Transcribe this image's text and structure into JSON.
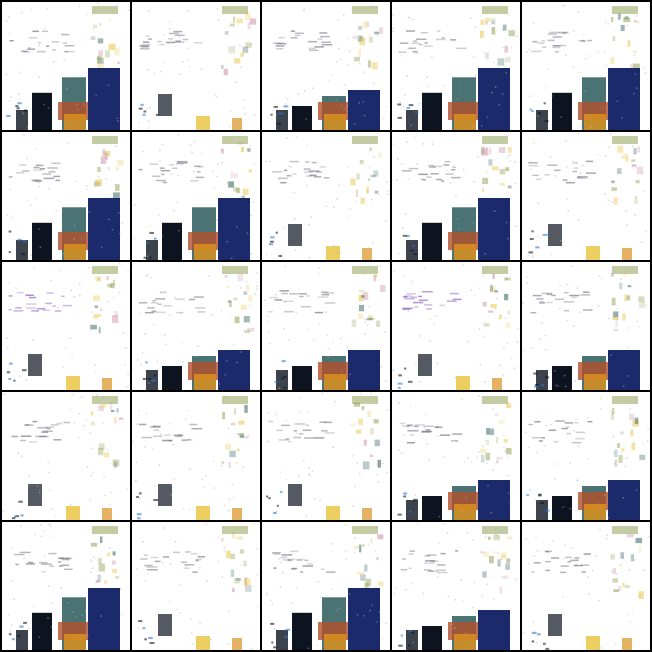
{
  "grid": {
    "rows": 5,
    "cols": 5
  },
  "palette": {
    "background": "#ffffff",
    "separator": "#000000",
    "navy": "#1b2a6b",
    "dark": "#0d1420",
    "teal": "#2c5a5a",
    "orange": "#d9911f",
    "rust": "#b3502a",
    "yellow": "#e8c23a",
    "olive": "#8a9a4a",
    "violet": "#7a4ab8",
    "blue": "#2a7ad9"
  },
  "tiles": [
    {
      "variant": "dense"
    },
    {
      "variant": "sparse"
    },
    {
      "variant": "medium"
    },
    {
      "variant": "dense"
    },
    {
      "variant": "dense"
    },
    {
      "variant": "dense"
    },
    {
      "variant": "dense"
    },
    {
      "variant": "sparse"
    },
    {
      "variant": "dense"
    },
    {
      "variant": "sparse"
    },
    {
      "variant": "faint"
    },
    {
      "variant": "medium"
    },
    {
      "variant": "medium"
    },
    {
      "variant": "faint"
    },
    {
      "variant": "medium"
    },
    {
      "variant": "sparse"
    },
    {
      "variant": "sparse"
    },
    {
      "variant": "sparse"
    },
    {
      "variant": "medium"
    },
    {
      "variant": "medium"
    },
    {
      "variant": "dense"
    },
    {
      "variant": "sparse"
    },
    {
      "variant": "dense"
    },
    {
      "variant": "medium"
    },
    {
      "variant": "sparse"
    }
  ]
}
